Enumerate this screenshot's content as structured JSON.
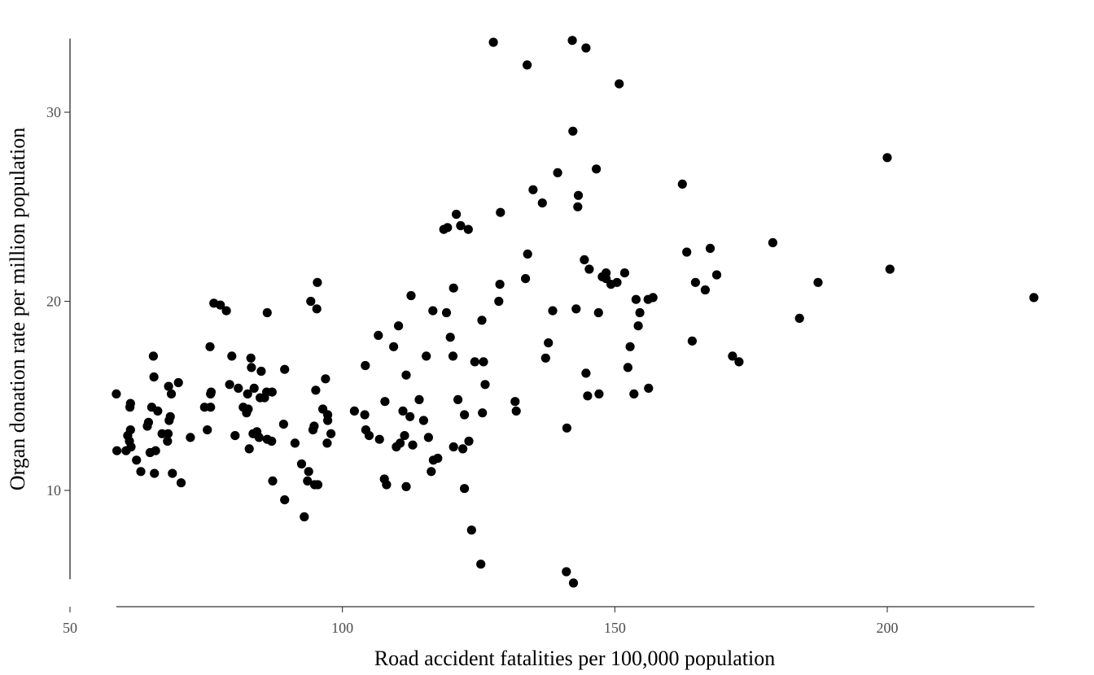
{
  "chart_data": {
    "type": "scatter",
    "title": "",
    "xlabel": "Road accident fatalities per 100,000 population",
    "ylabel": "Organ donation rate per million population",
    "x_range": [
      58.5,
      227
    ],
    "y_range": [
      5.3,
      33.9
    ],
    "x_ticks": [
      50,
      100,
      150,
      200
    ],
    "y_ticks": [
      10,
      20,
      30
    ],
    "x_tick_labels": [
      "50",
      "100",
      "150",
      "200"
    ],
    "y_tick_labels": [
      "10",
      "20",
      "30"
    ],
    "grid": false,
    "legend": "none",
    "point_color": "#000000",
    "points": [
      [
        58.5,
        15.1
      ],
      [
        58.6,
        12.1
      ],
      [
        60.3,
        12.1
      ],
      [
        60.6,
        12.9
      ],
      [
        60.9,
        12.6
      ],
      [
        61.0,
        14.4
      ],
      [
        61.1,
        13.2
      ],
      [
        61.1,
        14.6
      ],
      [
        61.2,
        12.3
      ],
      [
        62.2,
        11.6
      ],
      [
        63.0,
        11.0
      ],
      [
        64.2,
        13.4
      ],
      [
        64.4,
        13.6
      ],
      [
        64.7,
        12.0
      ],
      [
        65.0,
        14.4
      ],
      [
        65.3,
        17.1
      ],
      [
        65.4,
        16.0
      ],
      [
        65.5,
        10.9
      ],
      [
        65.7,
        12.1
      ],
      [
        66.1,
        14.2
      ],
      [
        66.9,
        13.0
      ],
      [
        67.9,
        12.6
      ],
      [
        68.0,
        13.0
      ],
      [
        68.1,
        15.5
      ],
      [
        68.2,
        13.7
      ],
      [
        68.4,
        13.9
      ],
      [
        68.6,
        15.1
      ],
      [
        68.8,
        10.9
      ],
      [
        69.9,
        15.7
      ],
      [
        70.4,
        10.4
      ],
      [
        72.1,
        12.8
      ],
      [
        74.7,
        14.4
      ],
      [
        75.2,
        13.2
      ],
      [
        75.7,
        17.6
      ],
      [
        75.8,
        14.4
      ],
      [
        75.8,
        15.1
      ],
      [
        75.9,
        15.2
      ],
      [
        76.4,
        19.9
      ],
      [
        77.6,
        19.8
      ],
      [
        78.7,
        19.5
      ],
      [
        79.3,
        15.6
      ],
      [
        79.7,
        17.1
      ],
      [
        80.3,
        12.9
      ],
      [
        80.9,
        15.4
      ],
      [
        81.8,
        14.4
      ],
      [
        82.4,
        14.1
      ],
      [
        82.6,
        15.1
      ],
      [
        82.7,
        14.3
      ],
      [
        82.9,
        12.2
      ],
      [
        83.2,
        17.0
      ],
      [
        83.3,
        16.5
      ],
      [
        83.6,
        13.0
      ],
      [
        83.8,
        15.4
      ],
      [
        84.3,
        13.1
      ],
      [
        84.7,
        12.8
      ],
      [
        84.9,
        14.9
      ],
      [
        85.1,
        16.3
      ],
      [
        85.7,
        14.9
      ],
      [
        86.1,
        15.2
      ],
      [
        86.2,
        12.7
      ],
      [
        86.2,
        19.4
      ],
      [
        87.0,
        12.6
      ],
      [
        87.1,
        15.2
      ],
      [
        87.2,
        10.5
      ],
      [
        89.2,
        13.5
      ],
      [
        89.4,
        16.4
      ],
      [
        89.4,
        9.5
      ],
      [
        91.3,
        12.5
      ],
      [
        92.5,
        11.4
      ],
      [
        93.0,
        8.6
      ],
      [
        93.6,
        10.5
      ],
      [
        93.8,
        11.0
      ],
      [
        94.2,
        20.0
      ],
      [
        94.6,
        13.2
      ],
      [
        94.8,
        13.4
      ],
      [
        94.9,
        10.3
      ],
      [
        95.1,
        15.3
      ],
      [
        95.4,
        21.0
      ],
      [
        95.3,
        19.6
      ],
      [
        95.5,
        10.3
      ],
      [
        96.4,
        14.3
      ],
      [
        96.9,
        15.9
      ],
      [
        97.2,
        12.5
      ],
      [
        97.3,
        14.0
      ],
      [
        97.3,
        13.7
      ],
      [
        97.9,
        13.0
      ],
      [
        102.2,
        14.2
      ],
      [
        104.1,
        14.0
      ],
      [
        104.2,
        16.6
      ],
      [
        104.3,
        13.2
      ],
      [
        104.9,
        12.9
      ],
      [
        106.6,
        18.2
      ],
      [
        106.8,
        12.7
      ],
      [
        107.7,
        10.6
      ],
      [
        107.8,
        14.7
      ],
      [
        108.1,
        10.3
      ],
      [
        109.4,
        17.6
      ],
      [
        109.9,
        12.3
      ],
      [
        110.3,
        18.7
      ],
      [
        110.6,
        12.5
      ],
      [
        111.1,
        14.2
      ],
      [
        111.4,
        12.9
      ],
      [
        111.7,
        16.1
      ],
      [
        111.7,
        10.2
      ],
      [
        112.4,
        13.9
      ],
      [
        112.6,
        20.3
      ],
      [
        112.9,
        12.4
      ],
      [
        114.1,
        14.8
      ],
      [
        114.9,
        13.7
      ],
      [
        115.4,
        17.1
      ],
      [
        115.8,
        12.8
      ],
      [
        116.3,
        11.0
      ],
      [
        116.6,
        19.5
      ],
      [
        116.7,
        11.6
      ],
      [
        117.5,
        11.7
      ],
      [
        118.6,
        23.8
      ],
      [
        119.1,
        19.4
      ],
      [
        119.3,
        23.9
      ],
      [
        119.8,
        18.1
      ],
      [
        120.3,
        17.1
      ],
      [
        120.4,
        20.7
      ],
      [
        120.4,
        12.3
      ],
      [
        120.9,
        24.6
      ],
      [
        121.2,
        14.8
      ],
      [
        121.7,
        24.0
      ],
      [
        122.1,
        12.2
      ],
      [
        122.4,
        14.0
      ],
      [
        122.4,
        10.1
      ],
      [
        123.2,
        12.6
      ],
      [
        123.1,
        23.8
      ],
      [
        123.7,
        7.9
      ],
      [
        124.3,
        16.8
      ],
      [
        125.4,
        6.1
      ],
      [
        125.6,
        19.0
      ],
      [
        125.7,
        14.1
      ],
      [
        125.9,
        16.8
      ],
      [
        126.2,
        15.6
      ],
      [
        127.7,
        33.7
      ],
      [
        128.7,
        20.0
      ],
      [
        128.9,
        20.9
      ],
      [
        129.0,
        24.7
      ],
      [
        131.7,
        14.7
      ],
      [
        131.9,
        14.2
      ],
      [
        133.6,
        21.2
      ],
      [
        133.9,
        32.5
      ],
      [
        134.0,
        22.5
      ],
      [
        135.0,
        25.9
      ],
      [
        136.7,
        25.2
      ],
      [
        137.3,
        17.0
      ],
      [
        137.8,
        17.8
      ],
      [
        138.6,
        19.5
      ],
      [
        139.5,
        26.8
      ],
      [
        141.1,
        5.7
      ],
      [
        141.2,
        13.3
      ],
      [
        142.2,
        33.8
      ],
      [
        142.3,
        29.0
      ],
      [
        142.4,
        5.1
      ],
      [
        142.9,
        19.6
      ],
      [
        143.2,
        25.0
      ],
      [
        143.3,
        25.6
      ],
      [
        144.4,
        22.2
      ],
      [
        144.7,
        33.4
      ],
      [
        144.7,
        16.2
      ],
      [
        145.0,
        15.0
      ],
      [
        145.3,
        21.7
      ],
      [
        146.6,
        27.0
      ],
      [
        147.0,
        19.4
      ],
      [
        147.1,
        15.1
      ],
      [
        147.7,
        21.3
      ],
      [
        148.4,
        21.5
      ],
      [
        148.4,
        21.2
      ],
      [
        149.3,
        20.9
      ],
      [
        150.4,
        21.0
      ],
      [
        150.8,
        31.5
      ],
      [
        151.8,
        21.5
      ],
      [
        152.4,
        16.5
      ],
      [
        152.8,
        17.6
      ],
      [
        153.5,
        15.1
      ],
      [
        153.9,
        20.1
      ],
      [
        154.3,
        18.7
      ],
      [
        154.6,
        19.4
      ],
      [
        156.1,
        20.1
      ],
      [
        156.2,
        15.4
      ],
      [
        157.0,
        20.2
      ],
      [
        162.4,
        26.2
      ],
      [
        163.2,
        22.6
      ],
      [
        164.2,
        17.9
      ],
      [
        164.8,
        21.0
      ],
      [
        166.6,
        20.6
      ],
      [
        167.5,
        22.8
      ],
      [
        168.7,
        21.4
      ],
      [
        171.6,
        17.1
      ],
      [
        172.8,
        16.8
      ],
      [
        179.0,
        23.1
      ],
      [
        183.9,
        19.1
      ],
      [
        187.3,
        21.0
      ],
      [
        200.0,
        27.6
      ],
      [
        200.5,
        21.7
      ],
      [
        226.9,
        20.2
      ]
    ]
  }
}
